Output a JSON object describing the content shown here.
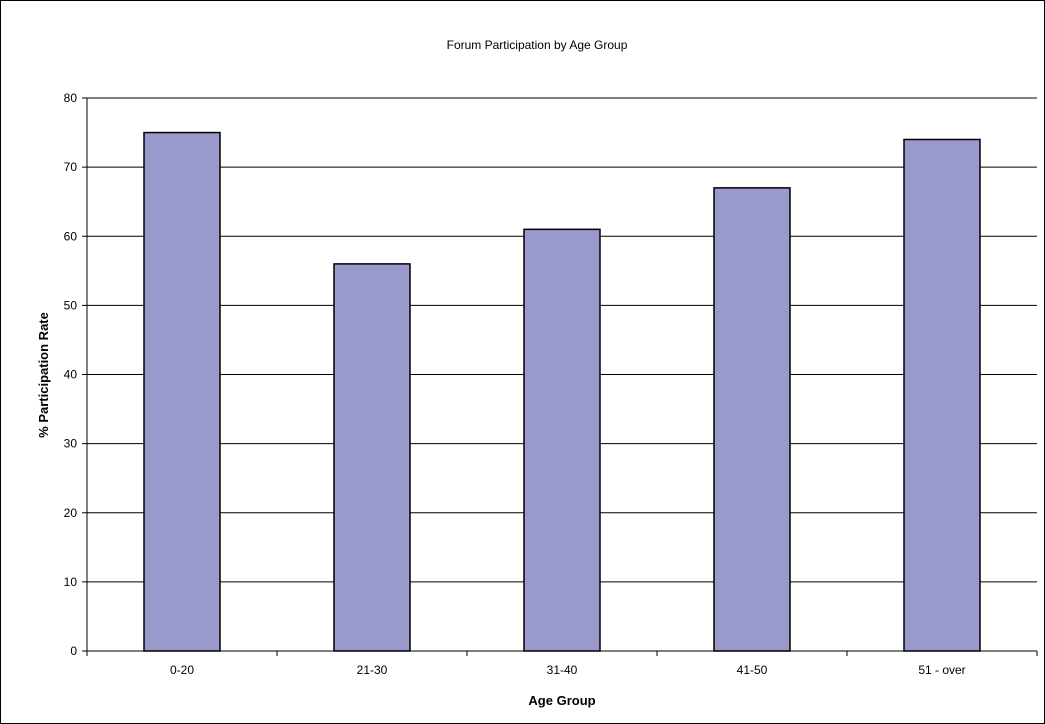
{
  "chart_data": {
    "type": "bar",
    "title": "Forum Participation by Age Group",
    "xlabel": "Age Group",
    "ylabel": "% Participation Rate",
    "categories": [
      "0-20",
      "21-30",
      "31-40",
      "41-50",
      "51 - over"
    ],
    "values": [
      75,
      56,
      61,
      67,
      74
    ],
    "ylim": [
      0,
      80
    ],
    "ytick_step": 10,
    "grid": true,
    "legend": "none",
    "colors": {
      "bar_fill": "#9999cc",
      "bar_stroke": "#000000",
      "gridline": "#000000",
      "plot_background": "#ffffff"
    }
  }
}
